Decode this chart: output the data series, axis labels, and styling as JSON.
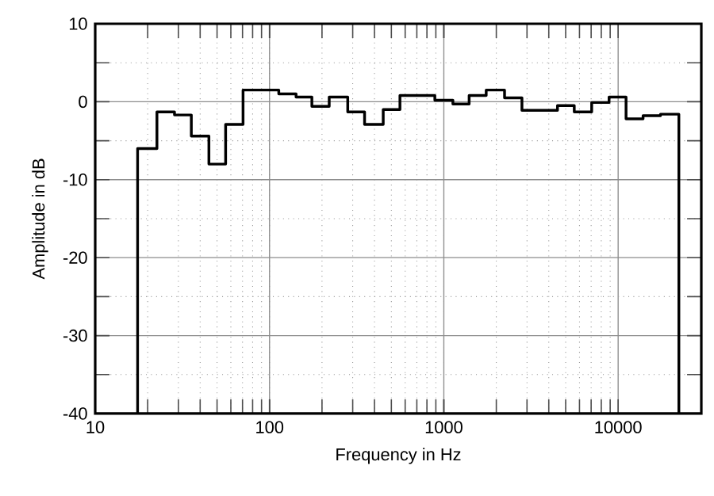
{
  "chart_data": {
    "type": "step",
    "xlabel": "Frequency in Hz",
    "ylabel": "Amplitude in dB",
    "log": "x",
    "grid": true,
    "xlim": [
      10,
      30000
    ],
    "ylim": [
      -40,
      10
    ],
    "xticks": [
      10,
      100,
      1000,
      10000
    ],
    "yticks": [
      -40,
      -30,
      -20,
      -10,
      0,
      10
    ],
    "series": [
      {
        "color": "#000000",
        "x": [
          17.5,
          17.5,
          22.6,
          28.5,
          35.6,
          44.9,
          56,
          70.5,
          113,
          142,
          175,
          220,
          281,
          351,
          449,
          560,
          888,
          1127,
          1397,
          1750,
          2230,
          2806,
          4487,
          5600,
          7050,
          8870,
          11100,
          13900,
          17500,
          22300,
          22300
        ],
        "values": [
          -40,
          -6,
          -1.3,
          -1.7,
          -4.4,
          -8,
          -2.9,
          1.5,
          1.0,
          0.6,
          -0.6,
          0.6,
          -1.3,
          -2.9,
          -1.0,
          0.8,
          0.2,
          -0.3,
          0.8,
          1.5,
          0.5,
          -1.1,
          -0.5,
          -1.3,
          -0.1,
          0.6,
          -2.2,
          -1.8,
          -1.6,
          -1.6,
          -40
        ]
      }
    ]
  }
}
